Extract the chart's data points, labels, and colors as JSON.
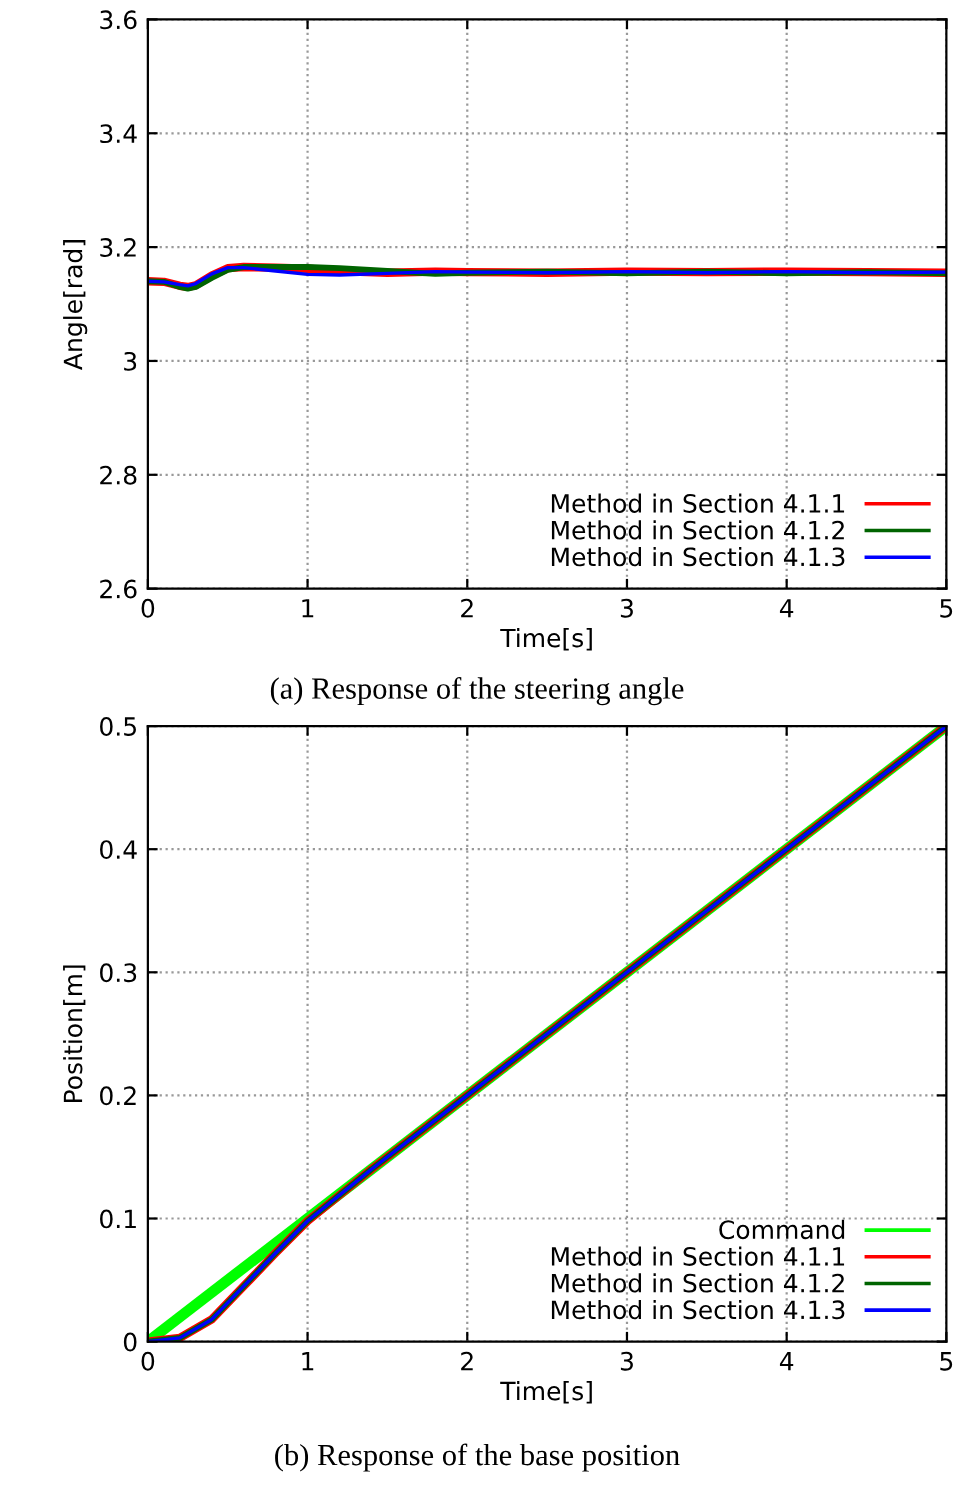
{
  "chart_data": [
    {
      "type": "line",
      "xlabel": "Time[s]",
      "ylabel": "Angle[rad]",
      "xlim": [
        0,
        5
      ],
      "ylim": [
        2.6,
        3.6
      ],
      "xticks": [
        0,
        1,
        2,
        3,
        4,
        5
      ],
      "yticks": [
        2.6,
        2.8,
        3,
        3.2,
        3.4,
        3.6
      ],
      "grid": true,
      "legend": "bottom right",
      "line_style": "solid",
      "annotations": [
        "(a) Response of the steering angle"
      ],
      "series": [
        {
          "name": "Method in Section 4.1.1",
          "color": "#ff0000",
          "x": [
            0,
            0.1,
            0.2,
            0.25,
            0.3,
            0.4,
            0.5,
            0.6,
            0.8,
            1.0,
            1.2,
            1.5,
            1.8,
            2.0,
            2.5,
            3,
            3.5,
            4,
            4.5,
            5
          ],
          "values": [
            3.14,
            3.139,
            3.132,
            3.13,
            3.133,
            3.15,
            3.163,
            3.165,
            3.164,
            3.162,
            3.158,
            3.155,
            3.157,
            3.156,
            3.155,
            3.157,
            3.156,
            3.157,
            3.156,
            3.155
          ]
        },
        {
          "name": "Method in Section 4.1.2",
          "color": "#006400",
          "x": [
            0,
            0.1,
            0.2,
            0.25,
            0.3,
            0.4,
            0.5,
            0.6,
            0.8,
            1.0,
            1.2,
            1.5,
            1.8,
            2.0,
            2.5,
            3,
            3.5,
            4,
            4.5,
            5
          ],
          "values": [
            3.14,
            3.139,
            3.13,
            3.127,
            3.13,
            3.146,
            3.16,
            3.165,
            3.165,
            3.165,
            3.163,
            3.158,
            3.153,
            3.155,
            3.157,
            3.154,
            3.157,
            3.154,
            3.156,
            3.154
          ]
        },
        {
          "name": "Method in Section 4.1.3",
          "color": "#0000ff",
          "x": [
            0,
            0.1,
            0.2,
            0.25,
            0.3,
            0.4,
            0.5,
            0.6,
            0.8,
            1.0,
            1.2,
            1.5,
            1.8,
            2.0,
            2.5,
            3,
            3.5,
            4,
            4.5,
            5
          ],
          "values": [
            3.14,
            3.139,
            3.134,
            3.132,
            3.136,
            3.153,
            3.164,
            3.164,
            3.158,
            3.152,
            3.151,
            3.154,
            3.157,
            3.156,
            3.155,
            3.157,
            3.155,
            3.157,
            3.155,
            3.156
          ]
        }
      ]
    },
    {
      "type": "line",
      "xlabel": "Time[s]",
      "ylabel": "Position[m]",
      "xlim": [
        0,
        5
      ],
      "ylim": [
        0,
        0.5
      ],
      "xticks": [
        0,
        1,
        2,
        3,
        4,
        5
      ],
      "yticks": [
        0,
        0.1,
        0.2,
        0.3,
        0.4,
        0.5
      ],
      "grid": true,
      "legend": "bottom right",
      "line_style": "solid",
      "annotations": [
        "(b) Response of the base position"
      ],
      "series": [
        {
          "name": "Command",
          "color": "#00ff00",
          "x": [
            0,
            5
          ],
          "values": [
            0,
            0.5
          ]
        },
        {
          "name": "Method in Section 4.1.1",
          "color": "#ff0000",
          "x": [
            0,
            0.2,
            0.4,
            0.6,
            0.8,
            1.0,
            1.2,
            1.4,
            2,
            3,
            4,
            5
          ],
          "values": [
            0,
            0.003,
            0.018,
            0.045,
            0.072,
            0.098,
            0.119,
            0.14,
            0.2,
            0.3,
            0.4,
            0.5
          ]
        },
        {
          "name": "Method in Section 4.1.2",
          "color": "#006400",
          "x": [
            0,
            0.2,
            0.4,
            0.6,
            0.8,
            1.0,
            1.2,
            1.4,
            2,
            3,
            4,
            5
          ],
          "values": [
            0,
            0.003,
            0.018,
            0.045,
            0.072,
            0.098,
            0.119,
            0.14,
            0.2,
            0.3,
            0.4,
            0.5
          ]
        },
        {
          "name": "Method in Section 4.1.3",
          "color": "#0000ff",
          "x": [
            0,
            0.2,
            0.4,
            0.6,
            0.8,
            1.0,
            1.2,
            1.4,
            2,
            3,
            4,
            5
          ],
          "values": [
            0,
            0.003,
            0.018,
            0.045,
            0.072,
            0.098,
            0.119,
            0.14,
            0.2,
            0.3,
            0.4,
            0.5
          ]
        }
      ]
    }
  ]
}
